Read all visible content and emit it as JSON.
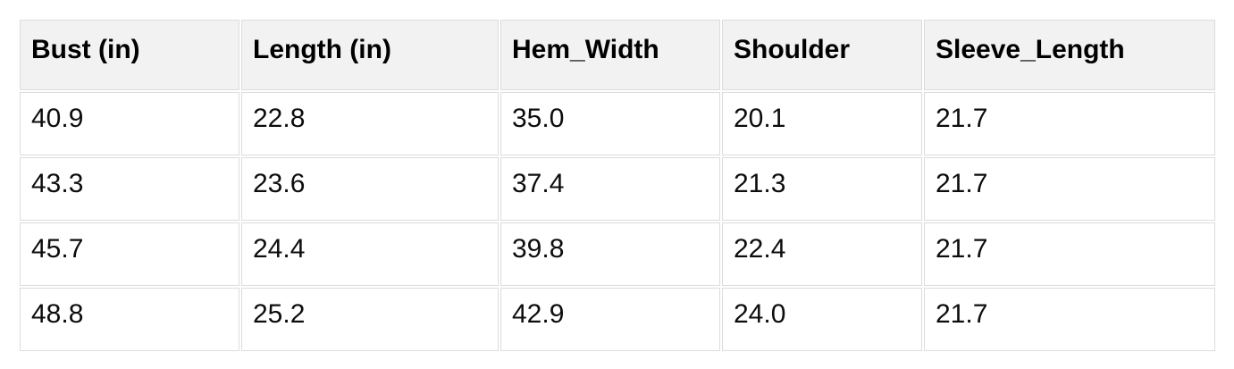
{
  "chart_data": {
    "type": "table",
    "columns": [
      "Bust (in)",
      "Length (in)",
      "Hem_Width",
      "Shoulder",
      "Sleeve_Length"
    ],
    "rows": [
      [
        "40.9",
        "22.8",
        "35.0",
        "20.1",
        "21.7"
      ],
      [
        "43.3",
        "23.6",
        "37.4",
        "21.3",
        "21.7"
      ],
      [
        "45.7",
        "24.4",
        "39.8",
        "22.4",
        "21.7"
      ],
      [
        "48.8",
        "25.2",
        "42.9",
        "24.0",
        "21.7"
      ]
    ]
  },
  "colors": {
    "header_background": "#f2f2f2",
    "cell_border": "#dcdcdc",
    "header_text": "#000000",
    "body_text": "#0d0d0d",
    "page_background": "#ffffff"
  }
}
